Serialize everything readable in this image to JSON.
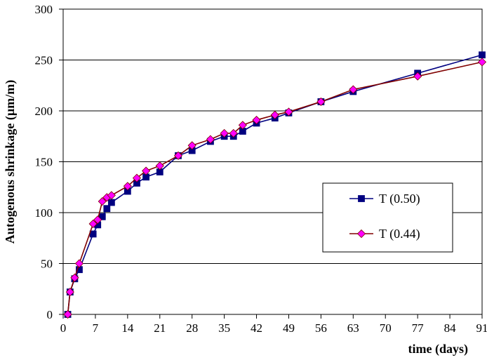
{
  "chart_data": {
    "type": "line",
    "xlabel": "time (days)",
    "ylabel": "Autogenous shrinkage (µm/m)",
    "xlim": [
      0,
      91
    ],
    "ylim": [
      0,
      300
    ],
    "x_ticks": [
      "0",
      "7",
      "14",
      "21",
      "28",
      "35",
      "42",
      "49",
      "56",
      "63",
      "70",
      "77",
      "84",
      "91"
    ],
    "y_ticks": [
      "0",
      "50",
      "100",
      "150",
      "200",
      "250",
      "300"
    ],
    "grid": "horizontal",
    "legend_position": "right-middle",
    "series": [
      {
        "name": "T (0.50)",
        "color": "#000080",
        "marker": "square",
        "points": [
          [
            1,
            0
          ],
          [
            1.5,
            22
          ],
          [
            2.5,
            35
          ],
          [
            3.5,
            44
          ],
          [
            6.5,
            79
          ],
          [
            7.5,
            88
          ],
          [
            8.5,
            96
          ],
          [
            9.5,
            104
          ],
          [
            10.5,
            110
          ],
          [
            14,
            121
          ],
          [
            16,
            129
          ],
          [
            18,
            135
          ],
          [
            21,
            140
          ],
          [
            25,
            156
          ],
          [
            28,
            161
          ],
          [
            32,
            170
          ],
          [
            35,
            175
          ],
          [
            37,
            175
          ],
          [
            39,
            180
          ],
          [
            42,
            188
          ],
          [
            46,
            193
          ],
          [
            49,
            198
          ],
          [
            56,
            209
          ],
          [
            63,
            219
          ],
          [
            77,
            237
          ],
          [
            91,
            255
          ]
        ]
      },
      {
        "name": "T (0.44)",
        "color": "#800000",
        "markerColor": "#ff00ff",
        "marker": "diamond",
        "points": [
          [
            1,
            0
          ],
          [
            1.5,
            22
          ],
          [
            2.5,
            36
          ],
          [
            3.5,
            50
          ],
          [
            6.5,
            89
          ],
          [
            7.5,
            93
          ],
          [
            8.5,
            111
          ],
          [
            9.5,
            115
          ],
          [
            10.5,
            117
          ],
          [
            14,
            126
          ],
          [
            16,
            134
          ],
          [
            18,
            141
          ],
          [
            21,
            146
          ],
          [
            25,
            156
          ],
          [
            28,
            166
          ],
          [
            32,
            172
          ],
          [
            35,
            178
          ],
          [
            37,
            178
          ],
          [
            39,
            186
          ],
          [
            42,
            191
          ],
          [
            46,
            196
          ],
          [
            49,
            199
          ],
          [
            56,
            209
          ],
          [
            63,
            221
          ],
          [
            77,
            234
          ],
          [
            91,
            248
          ]
        ]
      }
    ]
  }
}
